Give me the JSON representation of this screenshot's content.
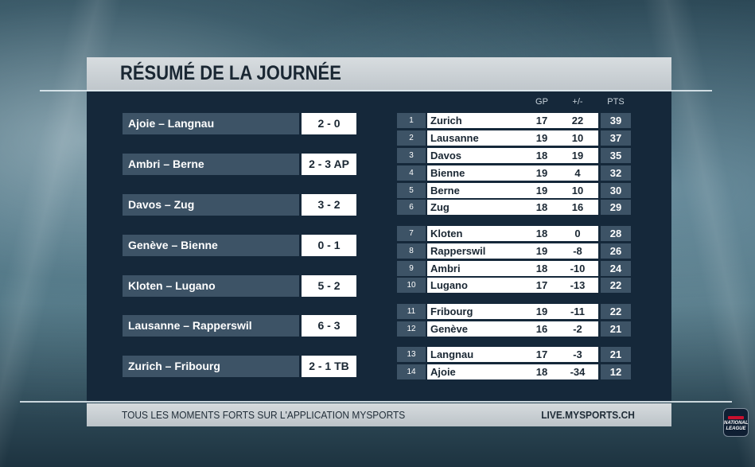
{
  "header": {
    "title": "RÉSUMÉ DE LA JOURNÉE"
  },
  "results": [
    {
      "match": "Ajoie – Langnau",
      "score": "2 - 0"
    },
    {
      "match": "Ambri – Berne",
      "score": "2 - 3 AP"
    },
    {
      "match": "Davos – Zug",
      "score": "3 - 2"
    },
    {
      "match": "Genève – Bienne",
      "score": "0 - 1"
    },
    {
      "match": "Kloten – Lugano",
      "score": "5 - 2"
    },
    {
      "match": "Lausanne – Rapperswil",
      "score": "6 - 3"
    },
    {
      "match": "Zurich – Fribourg",
      "score": "2 - 1 TB"
    }
  ],
  "standings": {
    "headers": {
      "gp": "GP",
      "diff": "+/-",
      "pts": "PTS"
    },
    "rows": [
      {
        "rank": "1",
        "team": "Zurich",
        "gp": "17",
        "diff": "22",
        "pts": "39"
      },
      {
        "rank": "2",
        "team": "Lausanne",
        "gp": "19",
        "diff": "10",
        "pts": "37"
      },
      {
        "rank": "3",
        "team": "Davos",
        "gp": "18",
        "diff": "19",
        "pts": "35"
      },
      {
        "rank": "4",
        "team": "Bienne",
        "gp": "19",
        "diff": "4",
        "pts": "32"
      },
      {
        "rank": "5",
        "team": "Berne",
        "gp": "19",
        "diff": "10",
        "pts": "30"
      },
      {
        "rank": "6",
        "team": "Zug",
        "gp": "18",
        "diff": "16",
        "pts": "29"
      },
      {
        "rank": "7",
        "team": "Kloten",
        "gp": "18",
        "diff": "0",
        "pts": "28"
      },
      {
        "rank": "8",
        "team": "Rapperswil",
        "gp": "19",
        "diff": "-8",
        "pts": "26"
      },
      {
        "rank": "9",
        "team": "Ambri",
        "gp": "18",
        "diff": "-10",
        "pts": "24"
      },
      {
        "rank": "10",
        "team": "Lugano",
        "gp": "17",
        "diff": "-13",
        "pts": "22"
      },
      {
        "rank": "11",
        "team": "Fribourg",
        "gp": "19",
        "diff": "-11",
        "pts": "22"
      },
      {
        "rank": "12",
        "team": "Genève",
        "gp": "16",
        "diff": "-2",
        "pts": "21"
      },
      {
        "rank": "13",
        "team": "Langnau",
        "gp": "17",
        "diff": "-3",
        "pts": "21"
      },
      {
        "rank": "14",
        "team": "Ajoie",
        "gp": "18",
        "diff": "-34",
        "pts": "12"
      }
    ]
  },
  "footer": {
    "left_text": "TOUS LES MOMENTS FORTS SUR L'APPLICATION MYSPORTS",
    "right_text": "LIVE.MYSPORTS.CH"
  },
  "logo": {
    "line1": "NATIONAL",
    "line2": "LEAGUE",
    "icon": "national-league-logo-icon"
  },
  "colors": {
    "panel": "#15283a",
    "label_bar": "#3d5366",
    "white": "#ffffff",
    "header_bar": "#c8cfd3"
  }
}
